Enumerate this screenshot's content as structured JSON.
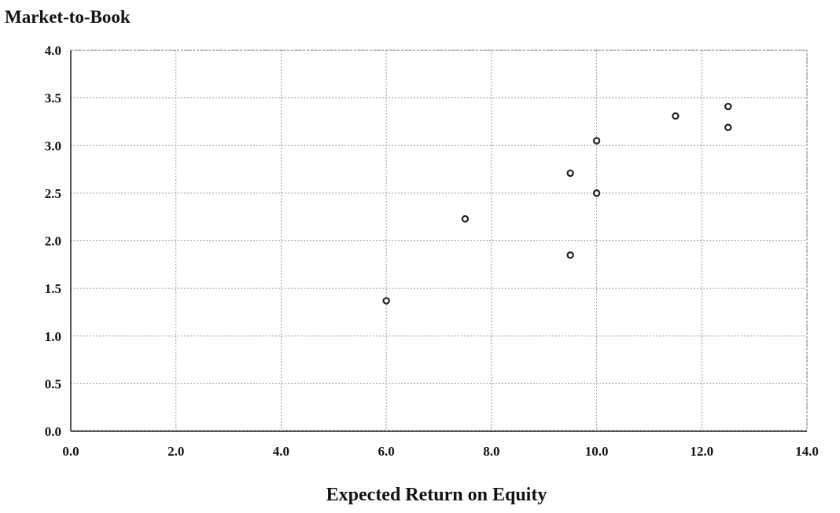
{
  "chart_data": {
    "type": "scatter",
    "title": "",
    "ylabel": "Market-to-Book",
    "xlabel": "Expected Return on Equity",
    "xlim": [
      0,
      14
    ],
    "ylim": [
      0,
      4
    ],
    "x_ticks": [
      "0.0",
      "2.0",
      "4.0",
      "6.0",
      "8.0",
      "10.0",
      "12.0",
      "14.0"
    ],
    "y_ticks": [
      "0.0",
      "0.5",
      "1.0",
      "1.5",
      "2.0",
      "2.5",
      "3.0",
      "3.5",
      "4.0"
    ],
    "grid": true,
    "points": [
      {
        "x": 6.0,
        "y": 1.37
      },
      {
        "x": 7.5,
        "y": 2.23
      },
      {
        "x": 9.5,
        "y": 1.85
      },
      {
        "x": 9.5,
        "y": 2.71
      },
      {
        "x": 10.0,
        "y": 2.5
      },
      {
        "x": 10.0,
        "y": 3.05
      },
      {
        "x": 11.5,
        "y": 3.31
      },
      {
        "x": 12.5,
        "y": 3.19
      },
      {
        "x": 12.5,
        "y": 3.41
      }
    ]
  }
}
